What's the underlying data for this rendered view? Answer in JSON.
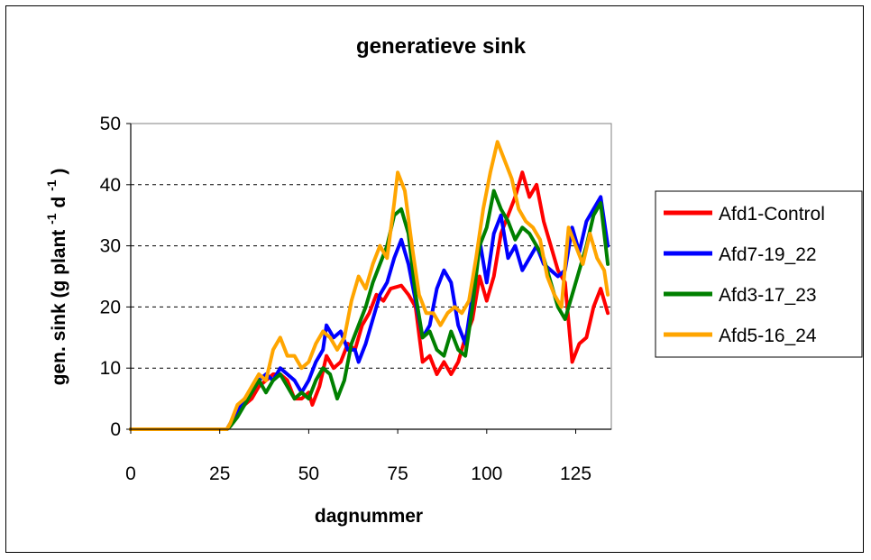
{
  "chart_data": {
    "type": "line",
    "title": "generatieve sink",
    "xlabel": "dagnummer",
    "ylabel": {
      "main": "gen. sink (g plant",
      "exp1": "-1",
      "mid": " d",
      "exp2": "-1",
      "end": ")"
    },
    "xlim": [
      0,
      135
    ],
    "ylim": [
      0,
      50
    ],
    "xticks": [
      "0",
      "25",
      "50",
      "75",
      "100",
      "125"
    ],
    "yticks": [
      "0",
      "10",
      "20",
      "30",
      "40",
      "50"
    ],
    "grid": "horizontal dashed",
    "legend_position": "right",
    "series": [
      {
        "name": "Afd1-Control",
        "color": "#ff0000",
        "points": [
          [
            0,
            0
          ],
          [
            27,
            0
          ],
          [
            28,
            0.5
          ],
          [
            30,
            3
          ],
          [
            32,
            4
          ],
          [
            34,
            5
          ],
          [
            36,
            7
          ],
          [
            38,
            8
          ],
          [
            40,
            9
          ],
          [
            42,
            9
          ],
          [
            44,
            8
          ],
          [
            46,
            5
          ],
          [
            48,
            5
          ],
          [
            50,
            6
          ],
          [
            51,
            4
          ],
          [
            53,
            7
          ],
          [
            55,
            12
          ],
          [
            57,
            10
          ],
          [
            59,
            11
          ],
          [
            61,
            14
          ],
          [
            63,
            13
          ],
          [
            65,
            17
          ],
          [
            67,
            19
          ],
          [
            69,
            22
          ],
          [
            71,
            21
          ],
          [
            73,
            23
          ],
          [
            76,
            23.5
          ],
          [
            78,
            22
          ],
          [
            80,
            20
          ],
          [
            82,
            11
          ],
          [
            84,
            12
          ],
          [
            86,
            9
          ],
          [
            88,
            11
          ],
          [
            90,
            9
          ],
          [
            92,
            11
          ],
          [
            94,
            15
          ],
          [
            96,
            18
          ],
          [
            98,
            25
          ],
          [
            100,
            21
          ],
          [
            102,
            25
          ],
          [
            104,
            32
          ],
          [
            106,
            35
          ],
          [
            108,
            38
          ],
          [
            110,
            42
          ],
          [
            112,
            38
          ],
          [
            114,
            40
          ],
          [
            116,
            34
          ],
          [
            118,
            30
          ],
          [
            120,
            26
          ],
          [
            122,
            24
          ],
          [
            124,
            11
          ],
          [
            126,
            14
          ],
          [
            128,
            15
          ],
          [
            130,
            20
          ],
          [
            132,
            23
          ],
          [
            134,
            19
          ]
        ]
      },
      {
        "name": "Afd7-19_22",
        "color": "#0000ff",
        "points": [
          [
            0,
            0
          ],
          [
            27,
            0
          ],
          [
            28,
            1
          ],
          [
            30,
            3
          ],
          [
            32,
            5
          ],
          [
            34,
            6
          ],
          [
            36,
            8
          ],
          [
            38,
            9
          ],
          [
            40,
            8
          ],
          [
            42,
            10
          ],
          [
            44,
            9
          ],
          [
            46,
            8
          ],
          [
            48,
            6
          ],
          [
            50,
            8
          ],
          [
            52,
            11
          ],
          [
            54,
            13
          ],
          [
            55,
            17
          ],
          [
            57,
            15
          ],
          [
            59,
            16
          ],
          [
            61,
            13
          ],
          [
            63,
            13
          ],
          [
            64,
            11
          ],
          [
            66,
            14
          ],
          [
            68,
            18
          ],
          [
            70,
            22
          ],
          [
            72,
            24
          ],
          [
            74,
            28
          ],
          [
            76,
            31
          ],
          [
            78,
            27
          ],
          [
            80,
            21
          ],
          [
            82,
            15
          ],
          [
            84,
            17
          ],
          [
            86,
            23
          ],
          [
            88,
            26
          ],
          [
            90,
            24
          ],
          [
            92,
            17
          ],
          [
            94,
            14
          ],
          [
            96,
            22
          ],
          [
            98,
            31
          ],
          [
            100,
            24
          ],
          [
            102,
            32
          ],
          [
            104,
            35
          ],
          [
            106,
            28
          ],
          [
            108,
            30
          ],
          [
            110,
            26
          ],
          [
            112,
            28
          ],
          [
            114,
            30
          ],
          [
            116,
            27
          ],
          [
            118,
            26
          ],
          [
            120,
            25
          ],
          [
            122,
            26
          ],
          [
            124,
            33
          ],
          [
            126,
            29
          ],
          [
            128,
            34
          ],
          [
            130,
            36
          ],
          [
            132,
            38
          ],
          [
            134,
            30
          ]
        ]
      },
      {
        "name": "Afd3-17_23",
        "color": "#008000",
        "points": [
          [
            0,
            0
          ],
          [
            27,
            0
          ],
          [
            28,
            0.5
          ],
          [
            30,
            2
          ],
          [
            32,
            4
          ],
          [
            34,
            6
          ],
          [
            36,
            8
          ],
          [
            38,
            6
          ],
          [
            40,
            8
          ],
          [
            42,
            9
          ],
          [
            44,
            7
          ],
          [
            46,
            5
          ],
          [
            48,
            6
          ],
          [
            50,
            5
          ],
          [
            52,
            8
          ],
          [
            54,
            10
          ],
          [
            56,
            9
          ],
          [
            58,
            5
          ],
          [
            60,
            8
          ],
          [
            62,
            14
          ],
          [
            64,
            17
          ],
          [
            66,
            20
          ],
          [
            68,
            24
          ],
          [
            70,
            27
          ],
          [
            72,
            30
          ],
          [
            74,
            35
          ],
          [
            76,
            36
          ],
          [
            78,
            32
          ],
          [
            80,
            22
          ],
          [
            82,
            15
          ],
          [
            84,
            16
          ],
          [
            86,
            13
          ],
          [
            88,
            12
          ],
          [
            90,
            16
          ],
          [
            92,
            13
          ],
          [
            94,
            12
          ],
          [
            96,
            20
          ],
          [
            98,
            30
          ],
          [
            100,
            33
          ],
          [
            102,
            39
          ],
          [
            104,
            36
          ],
          [
            106,
            34
          ],
          [
            108,
            31
          ],
          [
            110,
            33
          ],
          [
            112,
            32
          ],
          [
            114,
            30
          ],
          [
            116,
            28
          ],
          [
            118,
            24
          ],
          [
            120,
            20
          ],
          [
            122,
            18
          ],
          [
            124,
            22
          ],
          [
            126,
            26
          ],
          [
            128,
            30
          ],
          [
            130,
            35
          ],
          [
            132,
            37
          ],
          [
            134,
            27
          ]
        ]
      },
      {
        "name": "Afd5-16_24",
        "color": "#ffa500",
        "points": [
          [
            0,
            0
          ],
          [
            27,
            0
          ],
          [
            28,
            1
          ],
          [
            30,
            4
          ],
          [
            32,
            5
          ],
          [
            34,
            7
          ],
          [
            36,
            9
          ],
          [
            38,
            8
          ],
          [
            40,
            13
          ],
          [
            42,
            15
          ],
          [
            44,
            12
          ],
          [
            46,
            12
          ],
          [
            48,
            10
          ],
          [
            50,
            11
          ],
          [
            52,
            14
          ],
          [
            54,
            16
          ],
          [
            56,
            15
          ],
          [
            58,
            13
          ],
          [
            60,
            15
          ],
          [
            62,
            21
          ],
          [
            64,
            25
          ],
          [
            66,
            23
          ],
          [
            68,
            27
          ],
          [
            70,
            30
          ],
          [
            72,
            28
          ],
          [
            74,
            37
          ],
          [
            75,
            42
          ],
          [
            77,
            39
          ],
          [
            79,
            30
          ],
          [
            81,
            22
          ],
          [
            83,
            19
          ],
          [
            85,
            19
          ],
          [
            87,
            17
          ],
          [
            89,
            19
          ],
          [
            91,
            20
          ],
          [
            93,
            19
          ],
          [
            95,
            21
          ],
          [
            97,
            28
          ],
          [
            99,
            36
          ],
          [
            101,
            42
          ],
          [
            103,
            47
          ],
          [
            105,
            44
          ],
          [
            107,
            41
          ],
          [
            109,
            36
          ],
          [
            111,
            34
          ],
          [
            113,
            33
          ],
          [
            115,
            31
          ],
          [
            117,
            25
          ],
          [
            119,
            22
          ],
          [
            121,
            20
          ],
          [
            123,
            33
          ],
          [
            125,
            30
          ],
          [
            127,
            27
          ],
          [
            129,
            32
          ],
          [
            131,
            28
          ],
          [
            133,
            26
          ],
          [
            134,
            22
          ]
        ]
      }
    ]
  }
}
